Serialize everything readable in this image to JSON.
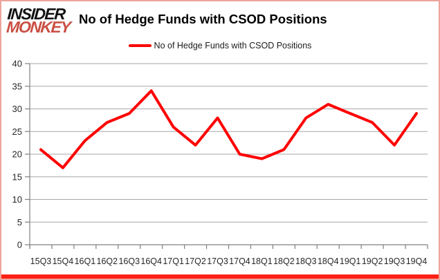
{
  "logo": {
    "line1": "INSIDER",
    "line2": "MONKEY"
  },
  "header": {
    "title": "No of Hedge Funds with CSOD Positions"
  },
  "legend": {
    "label": "No of Hedge Funds with CSOD Positions"
  },
  "chart_data": {
    "type": "line",
    "title": "No of Hedge Funds with CSOD Positions",
    "categories": [
      "15Q3",
      "15Q4",
      "16Q1",
      "16Q2",
      "16Q3",
      "16Q4",
      "17Q1",
      "17Q2",
      "17Q3",
      "17Q4",
      "18Q1",
      "18Q2",
      "18Q3",
      "18Q4",
      "19Q1",
      "19Q2",
      "19Q3",
      "19Q4"
    ],
    "series": [
      {
        "name": "No of Hedge Funds with CSOD Positions",
        "values": [
          21,
          17,
          23,
          27,
          29,
          34,
          26,
          22,
          28,
          20,
          19,
          21,
          28,
          31,
          29,
          27,
          22,
          29
        ],
        "color": "#ff0000"
      }
    ],
    "xlabel": "",
    "ylabel": "",
    "ylim": [
      0,
      40
    ],
    "yticks": [
      0,
      5,
      10,
      15,
      20,
      25,
      30,
      35,
      40
    ],
    "grid": true,
    "legend_position": "top-center"
  },
  "colors": {
    "line": "#ff0000",
    "gridline": "#a6a6a6",
    "axis": "#7f7f7f",
    "tick_label": "#262626",
    "frame_border": "#eda49c",
    "bottom_bar": "#fe2015",
    "logo_insider": "#111111",
    "logo_monkey": "#c94f43"
  }
}
